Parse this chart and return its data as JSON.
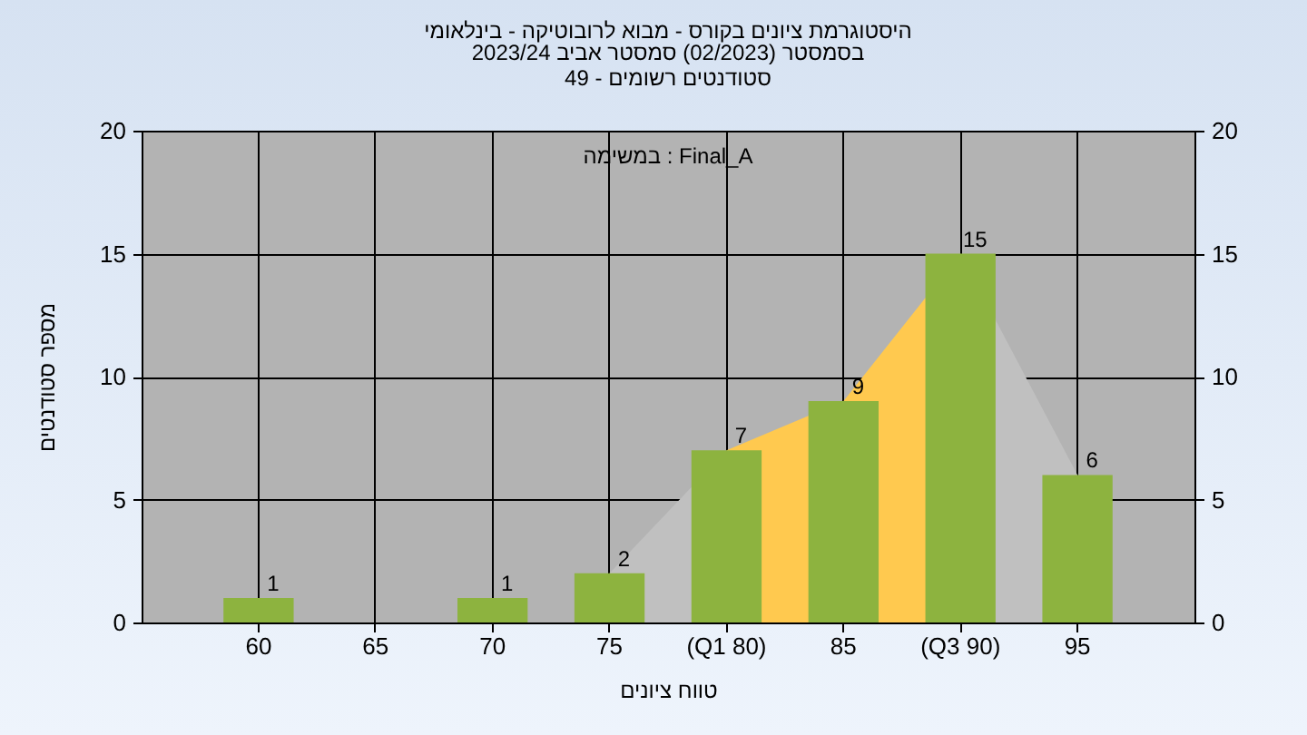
{
  "chart_data": {
    "type": "bar",
    "title": "היסטוגרמת ציונים בקורס - מבוא לרובוטיקה - בינלאומי",
    "subtitle": "בסמסטר  (02/2023)  סמסטר אביב 2023/24\nסטודנטים רשומים - 49",
    "xlabel": "טווח ציונים",
    "ylabel": "מספר סטודנטים",
    "annotations": [
      "Final_A : במשימה"
    ],
    "categories": [
      "60",
      "65",
      "70",
      "75",
      "(Q1 80)",
      "85",
      "(Q3 90)",
      "95"
    ],
    "series": [
      {
        "type": "area",
        "color": "#c0c0c0",
        "values": [
          null,
          null,
          null,
          2,
          7,
          null,
          15,
          6
        ]
      },
      {
        "type": "area",
        "color": "#ffc94f",
        "values": [
          null,
          null,
          null,
          null,
          7,
          9,
          15,
          null
        ]
      },
      {
        "color": "#8db33f",
        "values": [
          1,
          null,
          1,
          2,
          7,
          9,
          15,
          6
        ],
        "value_labels": [
          "1",
          null,
          "1",
          "2",
          "7",
          "9",
          "15",
          "6"
        ]
      }
    ],
    "ylim": [
      0,
      20
    ],
    "yticks": [
      0,
      5,
      10,
      15,
      20
    ],
    "y2lim": [
      0,
      20
    ],
    "y2ticks": [
      0,
      5,
      10,
      15,
      20
    ],
    "grid": true
  }
}
